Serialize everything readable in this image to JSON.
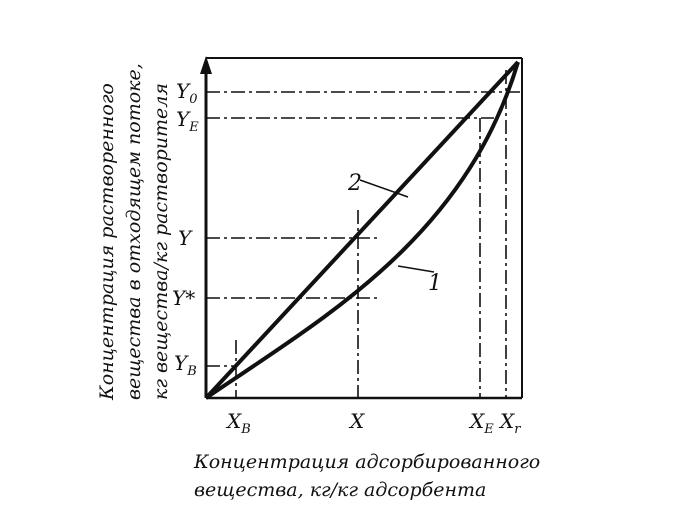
{
  "y_axis_title": {
    "line1": "Концентрация растворенного",
    "line2": "вещества в отходящем потоке,",
    "line3": "кг вещества/кг растворителя"
  },
  "x_axis_title": {
    "line1": "Концентрация адсорбированного",
    "line2": "вещества, кг/кг адсорбента"
  },
  "y_ticks": {
    "y0": {
      "main": "Y",
      "sub": "0"
    },
    "ye": {
      "main": "Y",
      "sub": "E"
    },
    "y": {
      "main": "Y"
    },
    "ystar": {
      "main": "Y*"
    },
    "yb": {
      "main": "Y",
      "sub": "B"
    }
  },
  "x_ticks": {
    "xb": {
      "main": "X",
      "sub": "B"
    },
    "x": {
      "main": "X"
    },
    "xe": {
      "main": "X",
      "sub": "E"
    },
    "xr": {
      "main": "X",
      "sub": "r"
    }
  },
  "curve_labels": {
    "equilibrium": "1",
    "operating": "2"
  }
}
